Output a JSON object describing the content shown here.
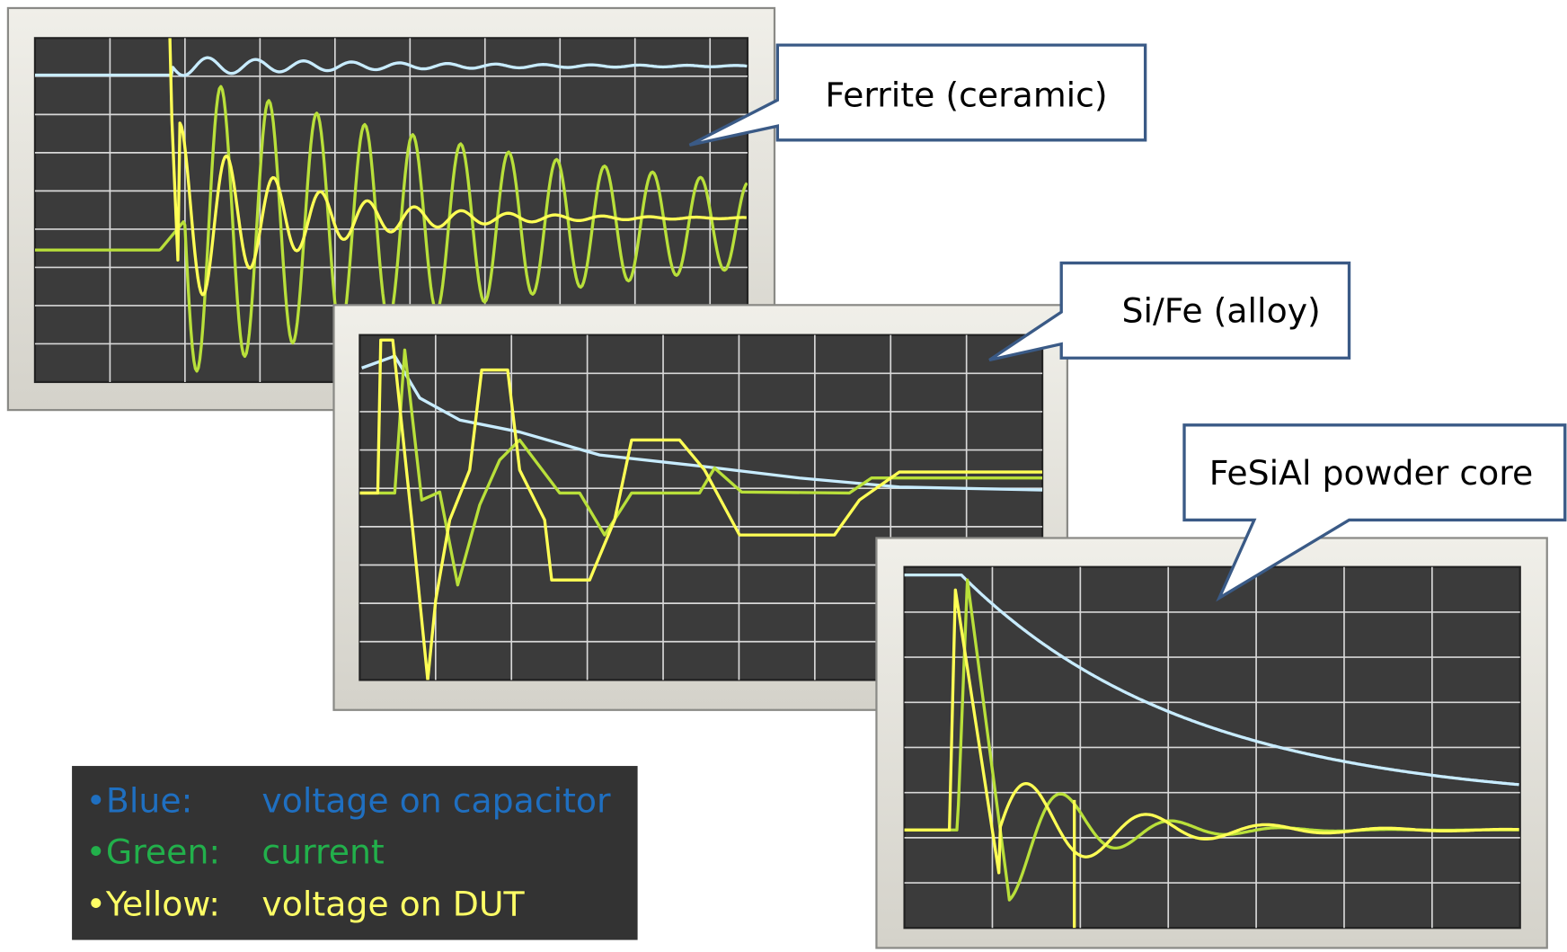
{
  "callouts": [
    {
      "label": "Ferrite (ceramic)"
    },
    {
      "label": "Si/Fe (alloy)"
    },
    {
      "label": "FeSiAl powder core"
    }
  ],
  "legend": [
    {
      "key": "•Blue:",
      "text": "voltage on capacitor"
    },
    {
      "key": "•Green:",
      "text": "current"
    },
    {
      "key": "•Yellow:",
      "text": "voltage on DUT"
    }
  ]
}
